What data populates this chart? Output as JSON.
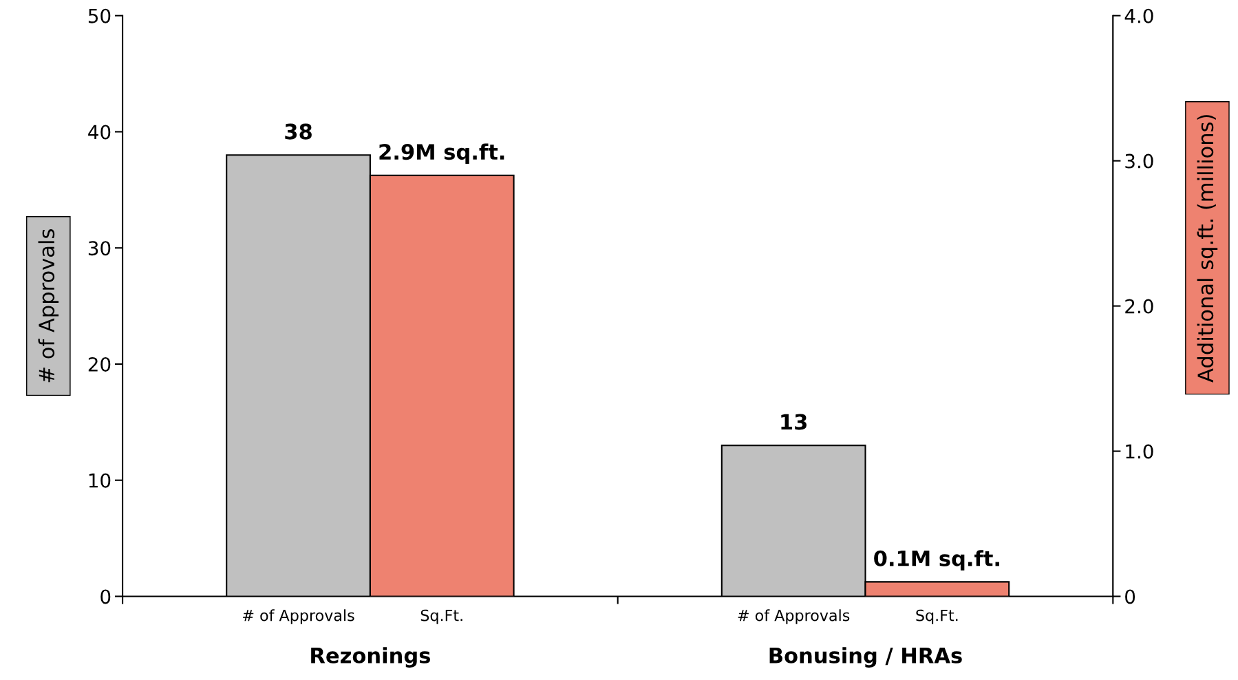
{
  "chart_data": {
    "type": "bar",
    "categories": [
      "Rezonings",
      "Bonusing / HRAs"
    ],
    "series": [
      {
        "name": "# of Approvals",
        "color": "#c0c0c0",
        "values": [
          38,
          13
        ],
        "axis": "y",
        "value_labels": [
          "38",
          "13"
        ]
      },
      {
        "name": "Sq.Ft.",
        "color": "#ee8270",
        "values": [
          2.9,
          0.1
        ],
        "axis": "y2",
        "value_labels": [
          "2.9M sq.ft.",
          "0.1M sq.ft."
        ]
      }
    ],
    "ylabel": "# of Approvals",
    "y2label": "Additional sq.ft. (millions)",
    "ylim": [
      0,
      50
    ],
    "yticks": [
      0,
      10,
      20,
      30,
      40,
      50
    ],
    "y2lim": [
      0,
      4
    ],
    "y2ticks": [
      0,
      {
        "value": 1,
        "label": "1.0"
      },
      {
        "value": 2,
        "label": "2.0"
      },
      {
        "value": 3,
        "label": "3.0"
      },
      {
        "value": 4,
        "label": "4.0"
      }
    ],
    "grid": false,
    "legend": false
  }
}
